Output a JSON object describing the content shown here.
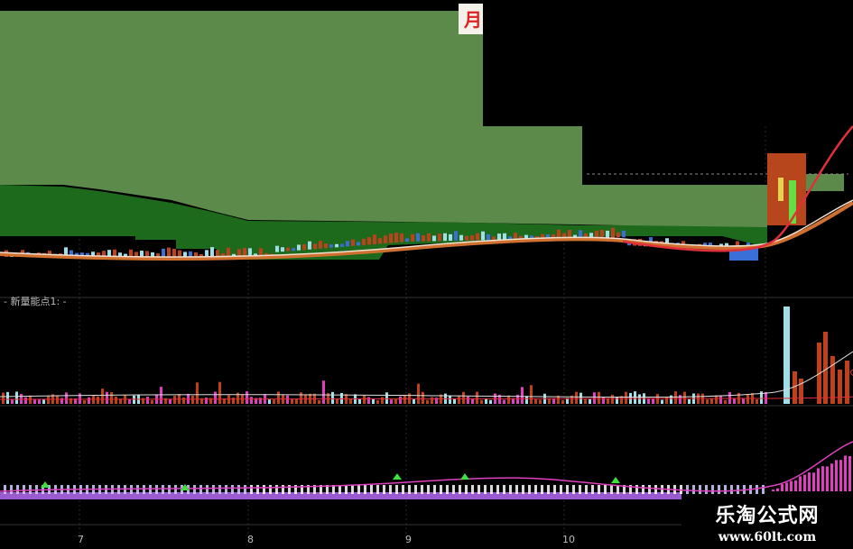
{
  "chart_data": {
    "type": "candlestick",
    "panels": [
      {
        "name": "price",
        "indicator_label": ""
      },
      {
        "name": "volume",
        "indicator_label": "- 新量能点1: -"
      },
      {
        "name": "oscillator",
        "indicator_label": ""
      }
    ],
    "x_tick_labels": [
      "7",
      "8",
      "9",
      "10"
    ],
    "colors": {
      "background": "#000000",
      "cloud_light": "#5b8a4b",
      "cloud_dark": "#1d6a1d",
      "up": "#c0401c",
      "down": "#3a6fd8",
      "ma_red": "#e0303a",
      "magenta": "#e040c0",
      "purple": "#9a5ad0"
    }
  },
  "watermark": {
    "title": "乐淘公式网",
    "url": "www.60lt.com"
  },
  "logo": {
    "glyph": " "
  }
}
